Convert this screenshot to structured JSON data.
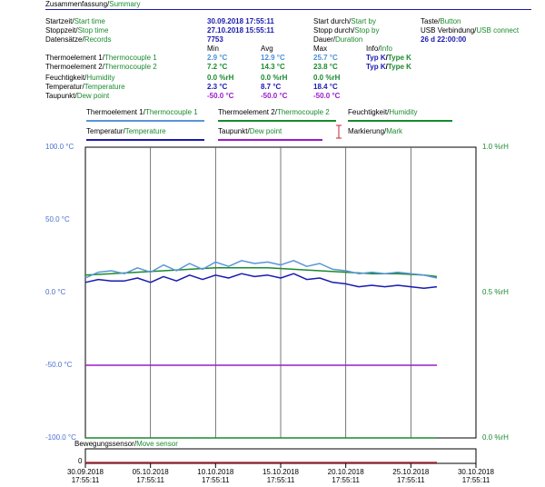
{
  "header": {
    "title_de": "Zusammenfassung",
    "title_en": "Summary"
  },
  "summary": {
    "start_label_de": "Startzeit",
    "start_label_en": "Start time",
    "start_value": "30.09.2018 17:55:11",
    "stop_label_de": "Stoppzeit",
    "stop_label_en": "Stop time",
    "stop_value": "27.10.2018 15:55:11",
    "records_label_de": "Datensätze",
    "records_label_en": "Records",
    "records_value": "7753",
    "start_by_label_de": "Start durch",
    "start_by_label_en": "Start by",
    "stop_by_label_de": "Stopp durch",
    "stop_by_label_en": "Stop by",
    "duration_label_de": "Dauer",
    "duration_label_en": "Duration",
    "start_by_value_de": "Taste",
    "start_by_value_en": "Button",
    "stop_by_value_de": "USB Verbindung",
    "stop_by_value_en": "USB connect",
    "duration_value": "26 d 22:00:00"
  },
  "stats": {
    "col_min": "Min",
    "col_avg": "Avg",
    "col_max": "Max",
    "col_info_de": "Info",
    "col_info_en": "Info",
    "rows": [
      {
        "label_de": "Thermoelement 1",
        "label_en": "Thermocouple 1",
        "min": "2.9 °C",
        "avg": "12.9 °C",
        "max": "25.7 °C",
        "info_de": "Typ K",
        "info_en": "Type K",
        "cls": "val-tc1"
      },
      {
        "label_de": "Thermoelement 2",
        "label_en": "Thermocouple 2",
        "min": "7.2 °C",
        "avg": "14.3 °C",
        "max": "23.8 °C",
        "info_de": "Typ K",
        "info_en": "Type K",
        "cls": "val-tc2"
      },
      {
        "label_de": "Feuchtigkeit",
        "label_en": "Humidity",
        "min": "0.0 %rH",
        "avg": "0.0 %rH",
        "max": "0.0 %rH",
        "info_de": "",
        "info_en": "",
        "cls": "val-hum"
      },
      {
        "label_de": "Temperatur",
        "label_en": "Temperature",
        "min": "2.3 °C",
        "avg": "8.7 °C",
        "max": "18.4 °C",
        "info_de": "",
        "info_en": "",
        "cls": "val-temp"
      },
      {
        "label_de": "Taupunkt",
        "label_en": "Dew point",
        "min": "-50.0 °C",
        "avg": "-50.0 °C",
        "max": "-50.0 °C",
        "info_de": "",
        "info_en": "",
        "cls": "val-dew"
      }
    ]
  },
  "legend": {
    "tc1_de": "Thermoelement 1",
    "tc1_en": "Thermocouple 1",
    "tc2_de": "Thermoelement 2",
    "tc2_en": "Thermocouple 2",
    "hum_de": "Feuchtigkeit",
    "hum_en": "Humidity",
    "temp_de": "Temperatur",
    "temp_en": "Temperature",
    "dew_de": "Taupunkt",
    "dew_en": "Dew point",
    "mark_de": "Markierung",
    "mark_en": "Mark"
  },
  "axes": {
    "left_ticks": [
      "100.0 °C",
      "50.0 °C",
      "0.0 °C",
      "-50.0 °C",
      "-100.0 °C"
    ],
    "right_ticks": [
      "1.0 %rH",
      "0.5 %rH",
      "0.0 %rH"
    ],
    "x_ticks": [
      [
        "30.09.2018",
        "17:55:11"
      ],
      [
        "05.10.2018",
        "17:55:11"
      ],
      [
        "10.10.2018",
        "17:55:11"
      ],
      [
        "15.10.2018",
        "17:55:11"
      ],
      [
        "20.10.2018",
        "17:55:11"
      ],
      [
        "25.10.2018",
        "17:55:11"
      ],
      [
        "30.10.2018",
        "17:55:11"
      ]
    ]
  },
  "move_sensor": {
    "label_de": "Bewegungssensor",
    "label_en": "Move sensor",
    "axis_value": "0"
  },
  "colors": {
    "tc1": "#5a95d8",
    "tc2": "#1a8a2e",
    "humidity": "#1a8a2e",
    "temperature": "#1a1ab0",
    "dew": "#9a1acb",
    "mark": "#c0283a",
    "grid": "#555555",
    "move": "#c0283a"
  },
  "chart_data": {
    "type": "line",
    "title": "",
    "xlabel": "",
    "ylabel": "",
    "ylim": [
      -100,
      100
    ],
    "y2lim": [
      0,
      1.0
    ],
    "xlim": [
      "30.09.2018 17:55:11",
      "30.10.2018 17:55:11"
    ],
    "grid": true,
    "legend_position": "top",
    "series": [
      {
        "name": "Thermoelement 1/Thermocouple 1",
        "axis": "left",
        "unit": "°C",
        "x": [
          "2018-09-30",
          "2018-10-01",
          "2018-10-02",
          "2018-10-03",
          "2018-10-04",
          "2018-10-05",
          "2018-10-06",
          "2018-10-07",
          "2018-10-08",
          "2018-10-09",
          "2018-10-10",
          "2018-10-11",
          "2018-10-12",
          "2018-10-13",
          "2018-10-14",
          "2018-10-15",
          "2018-10-16",
          "2018-10-17",
          "2018-10-18",
          "2018-10-19",
          "2018-10-20",
          "2018-10-21",
          "2018-10-22",
          "2018-10-23",
          "2018-10-24",
          "2018-10-25",
          "2018-10-26",
          "2018-10-27"
        ],
        "values": [
          10,
          14,
          15,
          13,
          17,
          14,
          19,
          15,
          20,
          16,
          21,
          18,
          22,
          20,
          21,
          19,
          22,
          18,
          20,
          16,
          15,
          13,
          14,
          13,
          14,
          13,
          12,
          10
        ]
      },
      {
        "name": "Thermoelement 2/Thermocouple 2",
        "axis": "left",
        "unit": "°C",
        "x": [
          "2018-09-30",
          "2018-10-02",
          "2018-10-04",
          "2018-10-06",
          "2018-10-08",
          "2018-10-10",
          "2018-10-12",
          "2018-10-14",
          "2018-10-16",
          "2018-10-18",
          "2018-10-20",
          "2018-10-22",
          "2018-10-24",
          "2018-10-26",
          "2018-10-27"
        ],
        "values": [
          12,
          13,
          14,
          15,
          16,
          17,
          17,
          17,
          16,
          15,
          14,
          13,
          13,
          12,
          11
        ]
      },
      {
        "name": "Temperatur/Temperature",
        "axis": "left",
        "unit": "°C",
        "x": [
          "2018-09-30",
          "2018-10-01",
          "2018-10-02",
          "2018-10-03",
          "2018-10-04",
          "2018-10-05",
          "2018-10-06",
          "2018-10-07",
          "2018-10-08",
          "2018-10-09",
          "2018-10-10",
          "2018-10-11",
          "2018-10-12",
          "2018-10-13",
          "2018-10-14",
          "2018-10-15",
          "2018-10-16",
          "2018-10-17",
          "2018-10-18",
          "2018-10-19",
          "2018-10-20",
          "2018-10-21",
          "2018-10-22",
          "2018-10-23",
          "2018-10-24",
          "2018-10-25",
          "2018-10-26",
          "2018-10-27"
        ],
        "values": [
          7,
          9,
          8,
          8,
          10,
          7,
          11,
          8,
          12,
          9,
          12,
          10,
          13,
          11,
          12,
          10,
          13,
          9,
          10,
          7,
          6,
          4,
          5,
          4,
          5,
          4,
          3,
          4
        ]
      },
      {
        "name": "Feuchtigkeit/Humidity",
        "axis": "right",
        "unit": "%rH",
        "x": [
          "2018-09-30",
          "2018-10-27"
        ],
        "values": [
          0.0,
          0.0
        ]
      },
      {
        "name": "Taupunkt/Dew point",
        "axis": "left",
        "unit": "°C",
        "x": [
          "2018-09-30",
          "2018-10-27"
        ],
        "values": [
          -50.0,
          -50.0
        ]
      }
    ]
  }
}
